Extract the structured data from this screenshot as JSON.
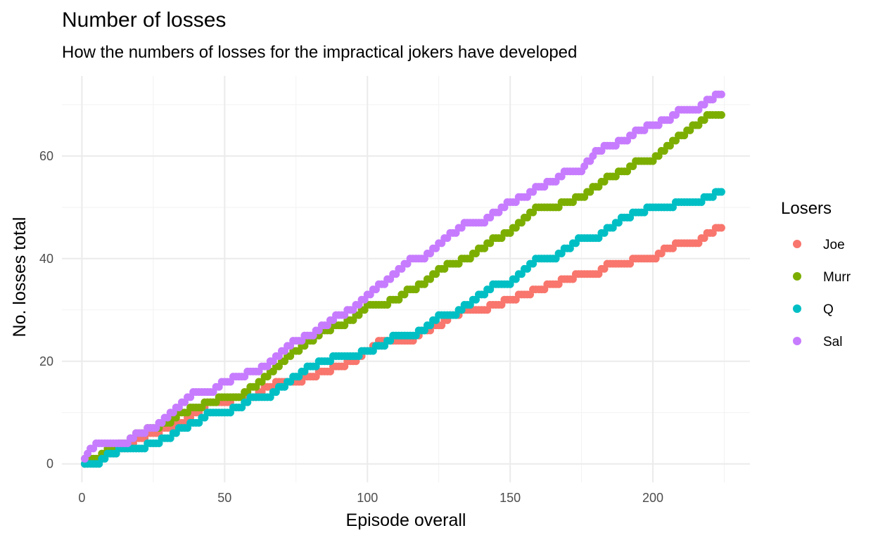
{
  "chart_data": {
    "type": "scatter",
    "title": "Number of losses",
    "subtitle": "How the numbers of losses for the impractical jokers have developed",
    "xlabel": "Episode overall",
    "ylabel": "No. losses total",
    "xlim": [
      -7,
      234
    ],
    "ylim": [
      -3.6,
      75.6
    ],
    "x_ticks": [
      0,
      50,
      100,
      150,
      200
    ],
    "y_ticks": [
      0,
      20,
      40,
      60
    ],
    "x_tick_labels": [
      "0",
      "50",
      "100",
      "150",
      "200"
    ],
    "y_tick_labels": [
      "0",
      "20",
      "40",
      "60"
    ],
    "grid": true,
    "legend": {
      "title": "Losers",
      "position": "right"
    },
    "series": [
      {
        "name": "Joe",
        "color": "#F8766D",
        "points": [
          [
            1,
            0
          ],
          [
            5,
            1
          ],
          [
            10,
            2
          ],
          [
            15,
            3
          ],
          [
            20,
            5
          ],
          [
            25,
            6
          ],
          [
            30,
            7
          ],
          [
            35,
            8
          ],
          [
            40,
            10
          ],
          [
            45,
            12
          ],
          [
            50,
            12
          ],
          [
            55,
            13
          ],
          [
            60,
            13
          ],
          [
            65,
            15
          ],
          [
            70,
            16
          ],
          [
            75,
            16
          ],
          [
            80,
            17
          ],
          [
            85,
            18
          ],
          [
            90,
            19
          ],
          [
            95,
            20
          ],
          [
            100,
            22
          ],
          [
            105,
            24
          ],
          [
            110,
            24
          ],
          [
            115,
            24
          ],
          [
            120,
            26
          ],
          [
            125,
            27
          ],
          [
            130,
            29
          ],
          [
            135,
            30
          ],
          [
            140,
            30
          ],
          [
            145,
            31
          ],
          [
            150,
            32
          ],
          [
            155,
            33
          ],
          [
            160,
            34
          ],
          [
            165,
            35
          ],
          [
            170,
            36
          ],
          [
            175,
            37
          ],
          [
            180,
            37
          ],
          [
            185,
            39
          ],
          [
            190,
            39
          ],
          [
            195,
            40
          ],
          [
            200,
            40
          ],
          [
            205,
            42
          ],
          [
            210,
            43
          ],
          [
            215,
            43
          ],
          [
            220,
            45
          ],
          [
            224,
            46
          ]
        ]
      },
      {
        "name": "Murr",
        "color": "#7CAE00",
        "points": [
          [
            1,
            1
          ],
          [
            5,
            1
          ],
          [
            10,
            3
          ],
          [
            15,
            4
          ],
          [
            20,
            6
          ],
          [
            25,
            7
          ],
          [
            30,
            8
          ],
          [
            35,
            10
          ],
          [
            40,
            11
          ],
          [
            45,
            12
          ],
          [
            50,
            13
          ],
          [
            55,
            13
          ],
          [
            60,
            15
          ],
          [
            65,
            17
          ],
          [
            70,
            20
          ],
          [
            75,
            22
          ],
          [
            80,
            24
          ],
          [
            85,
            26
          ],
          [
            90,
            27
          ],
          [
            95,
            28
          ],
          [
            100,
            31
          ],
          [
            105,
            31
          ],
          [
            110,
            32
          ],
          [
            115,
            34
          ],
          [
            120,
            35
          ],
          [
            125,
            38
          ],
          [
            130,
            39
          ],
          [
            135,
            40
          ],
          [
            140,
            42
          ],
          [
            145,
            44
          ],
          [
            150,
            45
          ],
          [
            155,
            48
          ],
          [
            160,
            50
          ],
          [
            165,
            50
          ],
          [
            170,
            51
          ],
          [
            175,
            52
          ],
          [
            180,
            54
          ],
          [
            185,
            56
          ],
          [
            190,
            57
          ],
          [
            195,
            59
          ],
          [
            200,
            59
          ],
          [
            205,
            62
          ],
          [
            210,
            64
          ],
          [
            215,
            66
          ],
          [
            220,
            68
          ],
          [
            224,
            68
          ]
        ]
      },
      {
        "name": "Q",
        "color": "#00BFC4",
        "points": [
          [
            1,
            0
          ],
          [
            5,
            0
          ],
          [
            10,
            2
          ],
          [
            15,
            3
          ],
          [
            20,
            3
          ],
          [
            25,
            4
          ],
          [
            30,
            5
          ],
          [
            35,
            7
          ],
          [
            40,
            8
          ],
          [
            45,
            10
          ],
          [
            50,
            10
          ],
          [
            55,
            11
          ],
          [
            60,
            13
          ],
          [
            65,
            13
          ],
          [
            70,
            15
          ],
          [
            75,
            17
          ],
          [
            80,
            19
          ],
          [
            85,
            20
          ],
          [
            90,
            21
          ],
          [
            95,
            21
          ],
          [
            100,
            22
          ],
          [
            105,
            23
          ],
          [
            110,
            25
          ],
          [
            115,
            25
          ],
          [
            120,
            26
          ],
          [
            125,
            29
          ],
          [
            130,
            29
          ],
          [
            135,
            31
          ],
          [
            140,
            33
          ],
          [
            145,
            35
          ],
          [
            150,
            35
          ],
          [
            155,
            38
          ],
          [
            160,
            40
          ],
          [
            165,
            40
          ],
          [
            170,
            42
          ],
          [
            175,
            44
          ],
          [
            180,
            44
          ],
          [
            185,
            46
          ],
          [
            190,
            48
          ],
          [
            195,
            49
          ],
          [
            200,
            50
          ],
          [
            205,
            50
          ],
          [
            210,
            51
          ],
          [
            215,
            51
          ],
          [
            220,
            52
          ],
          [
            224,
            53
          ]
        ]
      },
      {
        "name": "Sal",
        "color": "#C77CFF",
        "points": [
          [
            1,
            1
          ],
          [
            5,
            4
          ],
          [
            10,
            4
          ],
          [
            15,
            4
          ],
          [
            20,
            6
          ],
          [
            25,
            7
          ],
          [
            30,
            9
          ],
          [
            35,
            12
          ],
          [
            40,
            14
          ],
          [
            45,
            14
          ],
          [
            50,
            16
          ],
          [
            55,
            17
          ],
          [
            60,
            18
          ],
          [
            65,
            19
          ],
          [
            70,
            22
          ],
          [
            75,
            24
          ],
          [
            80,
            25
          ],
          [
            85,
            27
          ],
          [
            90,
            29
          ],
          [
            95,
            30
          ],
          [
            100,
            33
          ],
          [
            105,
            35
          ],
          [
            110,
            37
          ],
          [
            115,
            40
          ],
          [
            120,
            40
          ],
          [
            125,
            43
          ],
          [
            130,
            45
          ],
          [
            135,
            47
          ],
          [
            140,
            47
          ],
          [
            145,
            49
          ],
          [
            150,
            51
          ],
          [
            155,
            52
          ],
          [
            160,
            54
          ],
          [
            165,
            55
          ],
          [
            170,
            57
          ],
          [
            175,
            57
          ],
          [
            180,
            61
          ],
          [
            185,
            62
          ],
          [
            190,
            63
          ],
          [
            195,
            65
          ],
          [
            200,
            66
          ],
          [
            205,
            67
          ],
          [
            210,
            69
          ],
          [
            215,
            69
          ],
          [
            220,
            71
          ],
          [
            224,
            72
          ]
        ]
      }
    ]
  }
}
